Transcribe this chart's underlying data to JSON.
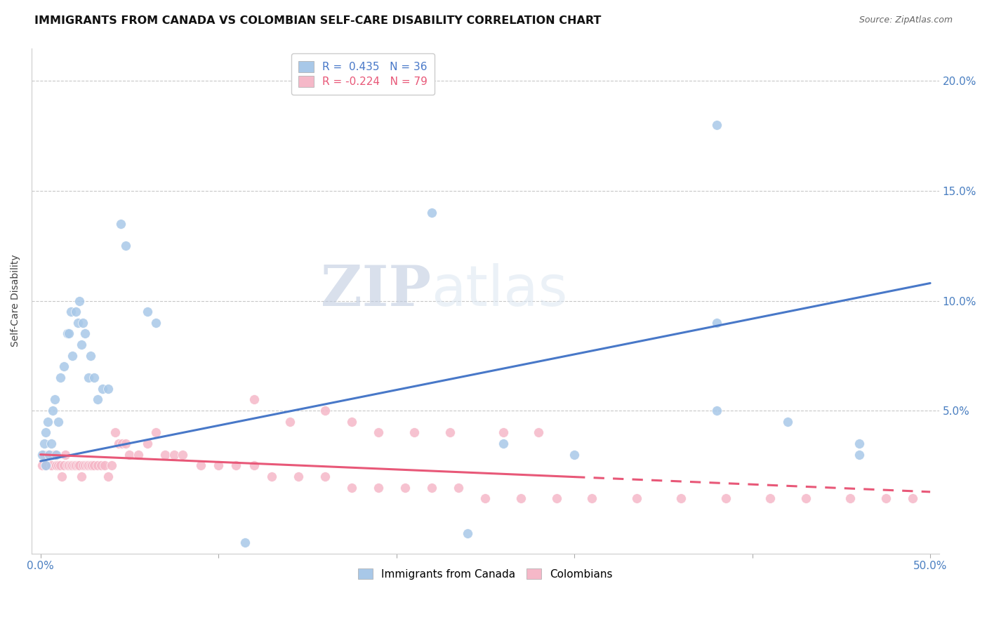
{
  "title": "IMMIGRANTS FROM CANADA VS COLOMBIAN SELF-CARE DISABILITY CORRELATION CHART",
  "source": "Source: ZipAtlas.com",
  "ylabel": "Self-Care Disability",
  "xlim": [
    -0.005,
    0.505
  ],
  "ylim": [
    -0.015,
    0.215
  ],
  "xticks": [
    0.0,
    0.1,
    0.2,
    0.3,
    0.4,
    0.5
  ],
  "xtick_labels_show": [
    "0.0%",
    "",
    "",
    "",
    "",
    "50.0%"
  ],
  "yticks": [
    0.0,
    0.05,
    0.1,
    0.15,
    0.2
  ],
  "right_ytick_labels": [
    "",
    "5.0%",
    "10.0%",
    "15.0%",
    "20.0%"
  ],
  "blue_R": 0.435,
  "blue_N": 36,
  "pink_R": -0.224,
  "pink_N": 79,
  "blue_scatter_x": [
    0.001,
    0.002,
    0.003,
    0.003,
    0.004,
    0.005,
    0.006,
    0.007,
    0.008,
    0.009,
    0.01,
    0.011,
    0.013,
    0.015,
    0.016,
    0.017,
    0.018,
    0.02,
    0.021,
    0.022,
    0.023,
    0.024,
    0.025,
    0.027,
    0.028,
    0.03,
    0.032,
    0.035,
    0.038,
    0.045,
    0.048,
    0.06,
    0.065,
    0.38,
    0.42,
    0.46
  ],
  "blue_scatter_y": [
    0.03,
    0.035,
    0.025,
    0.04,
    0.045,
    0.03,
    0.035,
    0.05,
    0.055,
    0.03,
    0.045,
    0.065,
    0.07,
    0.085,
    0.085,
    0.095,
    0.075,
    0.095,
    0.09,
    0.1,
    0.08,
    0.09,
    0.085,
    0.065,
    0.075,
    0.065,
    0.055,
    0.06,
    0.06,
    0.135,
    0.125,
    0.095,
    0.09,
    0.09,
    0.045,
    0.035
  ],
  "blue_outlier_x": [
    0.38
  ],
  "blue_outlier_y": [
    0.18
  ],
  "blue_outlier2_x": [
    0.22
  ],
  "blue_outlier2_y": [
    0.14
  ],
  "blue_extra_x": [
    0.115,
    0.24,
    0.26,
    0.3,
    0.38,
    0.46
  ],
  "blue_extra_y": [
    -0.01,
    -0.006,
    0.035,
    0.03,
    0.05,
    0.03
  ],
  "pink_scatter_x": [
    0.001,
    0.002,
    0.003,
    0.004,
    0.005,
    0.006,
    0.007,
    0.008,
    0.009,
    0.01,
    0.011,
    0.012,
    0.013,
    0.014,
    0.015,
    0.016,
    0.017,
    0.018,
    0.019,
    0.02,
    0.021,
    0.022,
    0.023,
    0.024,
    0.025,
    0.026,
    0.027,
    0.028,
    0.029,
    0.03,
    0.032,
    0.034,
    0.036,
    0.038,
    0.04,
    0.042,
    0.044,
    0.046,
    0.048,
    0.05,
    0.055,
    0.06,
    0.065,
    0.07,
    0.075,
    0.08,
    0.09,
    0.1,
    0.11,
    0.12,
    0.13,
    0.145,
    0.16,
    0.175,
    0.19,
    0.205,
    0.22,
    0.235,
    0.25,
    0.27,
    0.29,
    0.31,
    0.335,
    0.36,
    0.385,
    0.41,
    0.43,
    0.455,
    0.475,
    0.49,
    0.12,
    0.14,
    0.16,
    0.175,
    0.19,
    0.21,
    0.23,
    0.26,
    0.28
  ],
  "pink_scatter_y": [
    0.025,
    0.03,
    0.025,
    0.03,
    0.03,
    0.025,
    0.03,
    0.03,
    0.025,
    0.025,
    0.025,
    0.02,
    0.025,
    0.03,
    0.025,
    0.025,
    0.025,
    0.025,
    0.025,
    0.025,
    0.025,
    0.025,
    0.02,
    0.025,
    0.025,
    0.025,
    0.025,
    0.025,
    0.025,
    0.025,
    0.025,
    0.025,
    0.025,
    0.02,
    0.025,
    0.04,
    0.035,
    0.035,
    0.035,
    0.03,
    0.03,
    0.035,
    0.04,
    0.03,
    0.03,
    0.03,
    0.025,
    0.025,
    0.025,
    0.025,
    0.02,
    0.02,
    0.02,
    0.015,
    0.015,
    0.015,
    0.015,
    0.015,
    0.01,
    0.01,
    0.01,
    0.01,
    0.01,
    0.01,
    0.01,
    0.01,
    0.01,
    0.01,
    0.01,
    0.01,
    0.055,
    0.045,
    0.05,
    0.045,
    0.04,
    0.04,
    0.04,
    0.04,
    0.04
  ],
  "blue_line_x": [
    0.0,
    0.5
  ],
  "blue_line_y": [
    0.027,
    0.108
  ],
  "pink_line_x": [
    0.0,
    0.5
  ],
  "pink_line_y": [
    0.03,
    0.013
  ],
  "pink_line_solid_end": 0.3,
  "blue_color": "#a8c8e8",
  "pink_color": "#f5b8c8",
  "blue_line_color": "#4878c8",
  "pink_line_color": "#e85878",
  "background_color": "#ffffff",
  "grid_color": "#c8c8c8",
  "title_fontsize": 11.5,
  "axis_label_fontsize": 10,
  "tick_fontsize": 11,
  "legend_fontsize": 11,
  "watermark_zip": "ZIP",
  "watermark_atlas": "atlas"
}
